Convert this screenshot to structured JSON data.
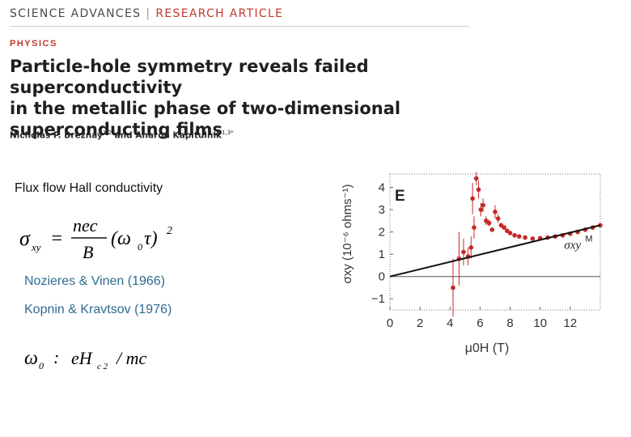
{
  "header": {
    "journal": "SCIENCE ADVANCES",
    "separator": "|",
    "article_type": "RESEARCH ARTICLE",
    "section": "PHYSICS",
    "title_lines": [
      "Particle-hole symmetry reveals failed superconductivity",
      "in the metallic phase of two-dimensional",
      "superconducting films"
    ],
    "authors": {
      "author1": "Nicholas P. Breznay",
      "author1_sup": "1,2",
      "and": "and",
      "author2": "Aharon Kapitulnik",
      "author2_sup": "1,3*"
    }
  },
  "slide": {
    "heading": "Flux flow Hall conductivity",
    "eq1": {
      "lhs": "σ",
      "lhs_sub": "xy",
      "eq": "=",
      "num": "nec",
      "den": "B",
      "paren": "(ω",
      "paren_sub": "0",
      "paren_end": "τ)",
      "exp": "2"
    },
    "ref1": "Nozieres & Vinen (1966)",
    "ref2": "Kopnin & Kravtsov (1976)",
    "eq2": {
      "lhs": "ω",
      "lhs_sub": "0",
      "sep": ":",
      "rhs": "eH",
      "rhs_sub": "c 2",
      "tail": "/ mc"
    }
  },
  "chart_data": {
    "type": "scatter",
    "panel_label": "E",
    "xlabel": "μ0H (T)",
    "ylabel": "σxy (10⁻⁶ ohms⁻¹)",
    "xlim": [
      0,
      14
    ],
    "ylim": [
      -1.5,
      4.6
    ],
    "xticks": [
      "0",
      "2",
      "4",
      "6",
      "8",
      "10",
      "12"
    ],
    "yticks": [
      "4",
      "3",
      "2",
      "1",
      "0",
      "−1"
    ],
    "grid": false,
    "series": [
      {
        "name": "σxy",
        "color": "#c62828",
        "kind": "points",
        "x": [
          4.2,
          4.6,
          4.9,
          5.2,
          5.4,
          5.5,
          5.6,
          5.75,
          5.9,
          6.05,
          6.2,
          6.4,
          6.6,
          6.8,
          7.0,
          7.2,
          7.4,
          7.6,
          7.8,
          8.0,
          8.3,
          8.6,
          9.0,
          9.5,
          10.0,
          10.5,
          11.0,
          11.5,
          12.0,
          12.5,
          13.0,
          13.5,
          14.0
        ],
        "y": [
          -0.5,
          0.8,
          1.1,
          0.9,
          1.3,
          3.5,
          2.2,
          4.4,
          3.9,
          3.0,
          3.2,
          2.5,
          2.4,
          2.1,
          2.9,
          2.6,
          2.3,
          2.2,
          2.05,
          1.95,
          1.85,
          1.8,
          1.75,
          1.7,
          1.72,
          1.75,
          1.8,
          1.85,
          1.92,
          2.0,
          2.1,
          2.2,
          2.3
        ],
        "yerr": [
          1.3,
          1.2,
          0.6,
          0.4,
          0.5,
          0.7,
          0.5,
          0.3,
          0.4,
          0.3,
          0.3,
          0.2,
          0.15,
          0.1,
          0.3,
          0.2,
          0.1,
          0.08,
          0.06,
          0.05,
          0.04,
          0.04,
          0.03,
          0.03,
          0.03,
          0.03,
          0.03,
          0.03,
          0.03,
          0.03,
          0.03,
          0.03,
          0.03
        ]
      },
      {
        "name": "σxy M",
        "color": "#111111",
        "kind": "line",
        "x": [
          0,
          14
        ],
        "y": [
          0.0,
          2.3
        ]
      }
    ],
    "annotations": [
      {
        "text": "σxy",
        "superscript": "M",
        "x": 11.6,
        "y": 1.25
      }
    ]
  }
}
